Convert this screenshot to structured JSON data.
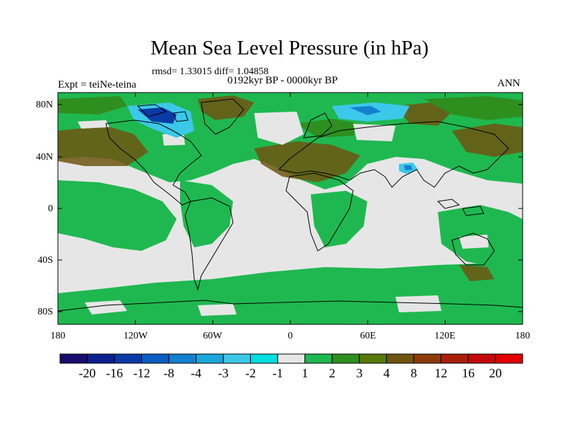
{
  "title": "Mean Sea Level Pressure (in hPa)",
  "stats_text": "rmsd= 1.33015 diff= 1.04858",
  "expt_text": "Expt = teiNe-teina",
  "period_text": "0192kyr BP - 0000kyr BP",
  "season_text": "ANN",
  "lat_labels": [
    "80N",
    "40N",
    "0",
    "40S",
    "80S"
  ],
  "lon_labels": [
    "180",
    "120W",
    "60W",
    "0",
    "60E",
    "120E",
    "180"
  ],
  "colorbar": {
    "labels": [
      "-20",
      "-16",
      "-12",
      "-8",
      "-4",
      "-3",
      "-2",
      "-1",
      "1",
      "2",
      "3",
      "4",
      "8",
      "12",
      "16",
      "20"
    ],
    "colors": [
      "#1a0b6e",
      "#0d1f8f",
      "#0a3aa6",
      "#0c5cc2",
      "#1480cf",
      "#1aa7d9",
      "#3cc8e8",
      "#00dede",
      "#e6e6e6",
      "#1fb850",
      "#2e8f1f",
      "#57780a",
      "#6e5510",
      "#8c3a0a",
      "#a81e0a",
      "#c40a0a",
      "#e00000"
    ]
  },
  "map_colors": {
    "background": "#e6e6e6",
    "low_positive": "#1fb850",
    "mid_positive": "#2e8f1f",
    "high_positive": "#6e5510",
    "negative_weak": "#1aa7d9",
    "negative_strong": "#0a3aa6",
    "coast": "#000000"
  }
}
